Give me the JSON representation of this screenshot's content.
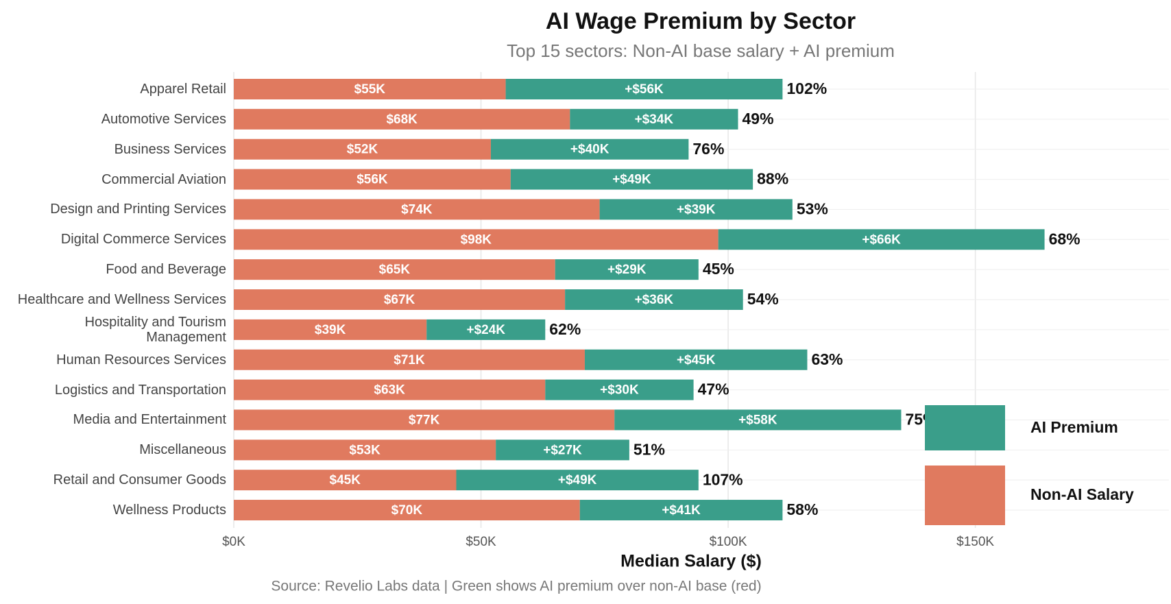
{
  "chart_data": {
    "type": "stacked-barh",
    "title": "AI Wage Premium by Sector",
    "subtitle": "Top 15 sectors: Non-AI base salary + AI premium",
    "x_label": "Median Salary ($)",
    "source": "Source: Revelio Labs data | Green shows AI premium over non-AI base (red)",
    "categories": [
      "Apparel Retail",
      "Automotive Services",
      "Business Services",
      "Commercial Aviation",
      "Design and Printing Services",
      "Digital Commerce Services",
      "Food and Beverage",
      "Healthcare and Wellness Services",
      "Hospitality and Tourism Management",
      "Human Resources Services",
      "Logistics and Transportation",
      "Media and Entertainment",
      "Miscellaneous",
      "Retail and Consumer Goods",
      "Wellness Products"
    ],
    "series": [
      {
        "name": "Non-AI Salary",
        "color": "#e07a5f",
        "values": [
          55000,
          68000,
          52000,
          56000,
          74000,
          98000,
          65000,
          67000,
          39000,
          71000,
          63000,
          77000,
          53000,
          45000,
          70000
        ],
        "value_labels": [
          "$55K",
          "$68K",
          "$52K",
          "$56K",
          "$74K",
          "$98K",
          "$65K",
          "$67K",
          "$39K",
          "$71K",
          "$63K",
          "$77K",
          "$53K",
          "$45K",
          "$70K"
        ]
      },
      {
        "name": "AI Premium",
        "color": "#3a9e8a",
        "values": [
          56000,
          34000,
          40000,
          49000,
          39000,
          66000,
          29000,
          36000,
          24000,
          45000,
          30000,
          58000,
          27000,
          49000,
          41000
        ],
        "value_labels": [
          "+$56K",
          "+$34K",
          "+$40K",
          "+$49K",
          "+$39K",
          "+$66K",
          "+$29K",
          "+$36K",
          "+$24K",
          "+$45K",
          "+$30K",
          "+$58K",
          "+$27K",
          "+$49K",
          "+$41K"
        ]
      }
    ],
    "premium_pct": {
      "values": [
        102,
        49,
        76,
        88,
        53,
        68,
        45,
        54,
        62,
        63,
        47,
        75,
        51,
        107,
        58
      ],
      "value_labels": [
        "102%",
        "49%",
        "76%",
        "88%",
        "53%",
        "68%",
        "45%",
        "54%",
        "62%",
        "63%",
        "47%",
        "75%",
        "51%",
        "107%",
        "58%"
      ]
    },
    "xlim": [
      0,
      185000
    ],
    "xticks": [
      {
        "value": 0,
        "label": "$0K"
      },
      {
        "value": 50000,
        "label": "$50K"
      },
      {
        "value": 100000,
        "label": "$100K"
      },
      {
        "value": 150000,
        "label": "$150K"
      }
    ],
    "grid": true,
    "legend": "right"
  }
}
